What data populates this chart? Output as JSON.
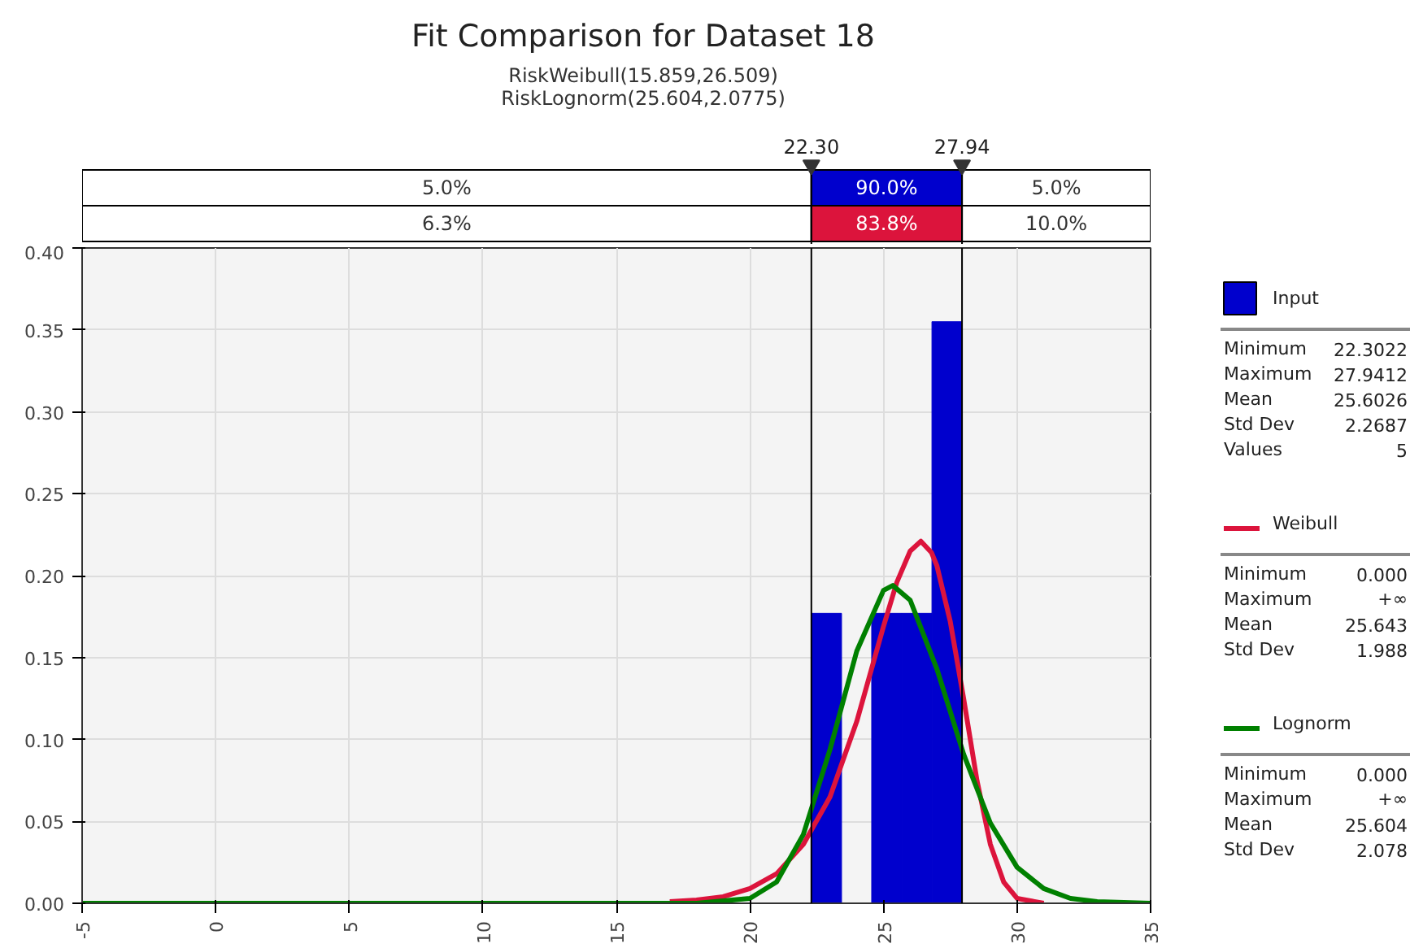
{
  "chart_data": {
    "type": "histogram",
    "title": "Fit Comparison for Dataset 18",
    "subtitle": "RiskWeibull(15.859,26.509)\nRiskLognorm(25.604,2.0775)",
    "xlim": [
      -5,
      35
    ],
    "xticks": [
      -5,
      0,
      5,
      10,
      15,
      20,
      25,
      30,
      35
    ],
    "ylim": [
      0,
      0.4
    ],
    "yticks": [
      {
        "value": 0,
        "label": "0.00"
      },
      {
        "value": 0.05,
        "label": "0.05"
      },
      {
        "value": 0.1,
        "label": "0.10"
      },
      {
        "value": 0.15,
        "label": "0.15"
      },
      {
        "value": 0.2,
        "label": "0.20"
      },
      {
        "value": 0.25,
        "label": "0.25"
      },
      {
        "value": 0.3,
        "label": "0.30"
      },
      {
        "value": 0.35,
        "label": "0.35"
      },
      {
        "value": 0.4,
        "label": "0.40"
      }
    ],
    "grid": true,
    "legend": "right",
    "series": [
      {
        "name": "Input",
        "color": "#0000cd",
        "bins": [
          22.302,
          23.43,
          24.558,
          25.686,
          26.814,
          27.941
        ],
        "values": [
          0.177,
          0,
          0.177,
          0.177,
          0.355
        ]
      },
      {
        "name": "Weibull",
        "type": "line",
        "color": "#dc143c",
        "x": [
          17,
          18,
          19,
          20,
          21,
          22,
          23,
          24,
          25,
          25.5,
          26,
          26.4,
          26.8,
          27,
          27.5,
          28,
          28.5,
          29,
          29.5,
          30,
          31
        ],
        "values": [
          0.001,
          0.002,
          0.004,
          0.009,
          0.018,
          0.036,
          0.065,
          0.111,
          0.169,
          0.196,
          0.215,
          0.221,
          0.214,
          0.206,
          0.172,
          0.125,
          0.075,
          0.036,
          0.013,
          0.003,
          0
        ]
      },
      {
        "name": "Lognorm",
        "type": "line",
        "color": "#008000",
        "x": [
          -5,
          15,
          18,
          20,
          21,
          22,
          23,
          24,
          25,
          25.35,
          26,
          27,
          28,
          29,
          30,
          31,
          32,
          33,
          35
        ],
        "values": [
          0,
          0,
          0,
          0.003,
          0.013,
          0.042,
          0.094,
          0.154,
          0.191,
          0.194,
          0.185,
          0.143,
          0.091,
          0.049,
          0.022,
          0.009,
          0.003,
          0.001,
          0
        ]
      }
    ],
    "ref_lines": [
      {
        "axis": "x",
        "value": 22.3,
        "label": "22.30",
        "color": "#000000"
      },
      {
        "axis": "x",
        "value": 27.94,
        "label": "27.94",
        "color": "#000000"
      }
    ],
    "annotations": [
      "5.0%",
      "90.0%",
      "5.0%",
      "6.3%",
      "83.8%",
      "10.0%",
      "Minimum",
      "22.3022",
      "Maximum",
      "27.9412",
      "Mean",
      "25.6026",
      "Std Dev",
      "2.2687",
      "Values",
      "5",
      "Minimum",
      "0.000",
      "Maximum",
      "+∞",
      "Mean",
      "25.643",
      "Std Dev",
      "1.988",
      "Minimum",
      "0.000",
      "Maximum",
      "+∞",
      "Mean",
      "25.604",
      "Std Dev",
      "2.078"
    ]
  }
}
